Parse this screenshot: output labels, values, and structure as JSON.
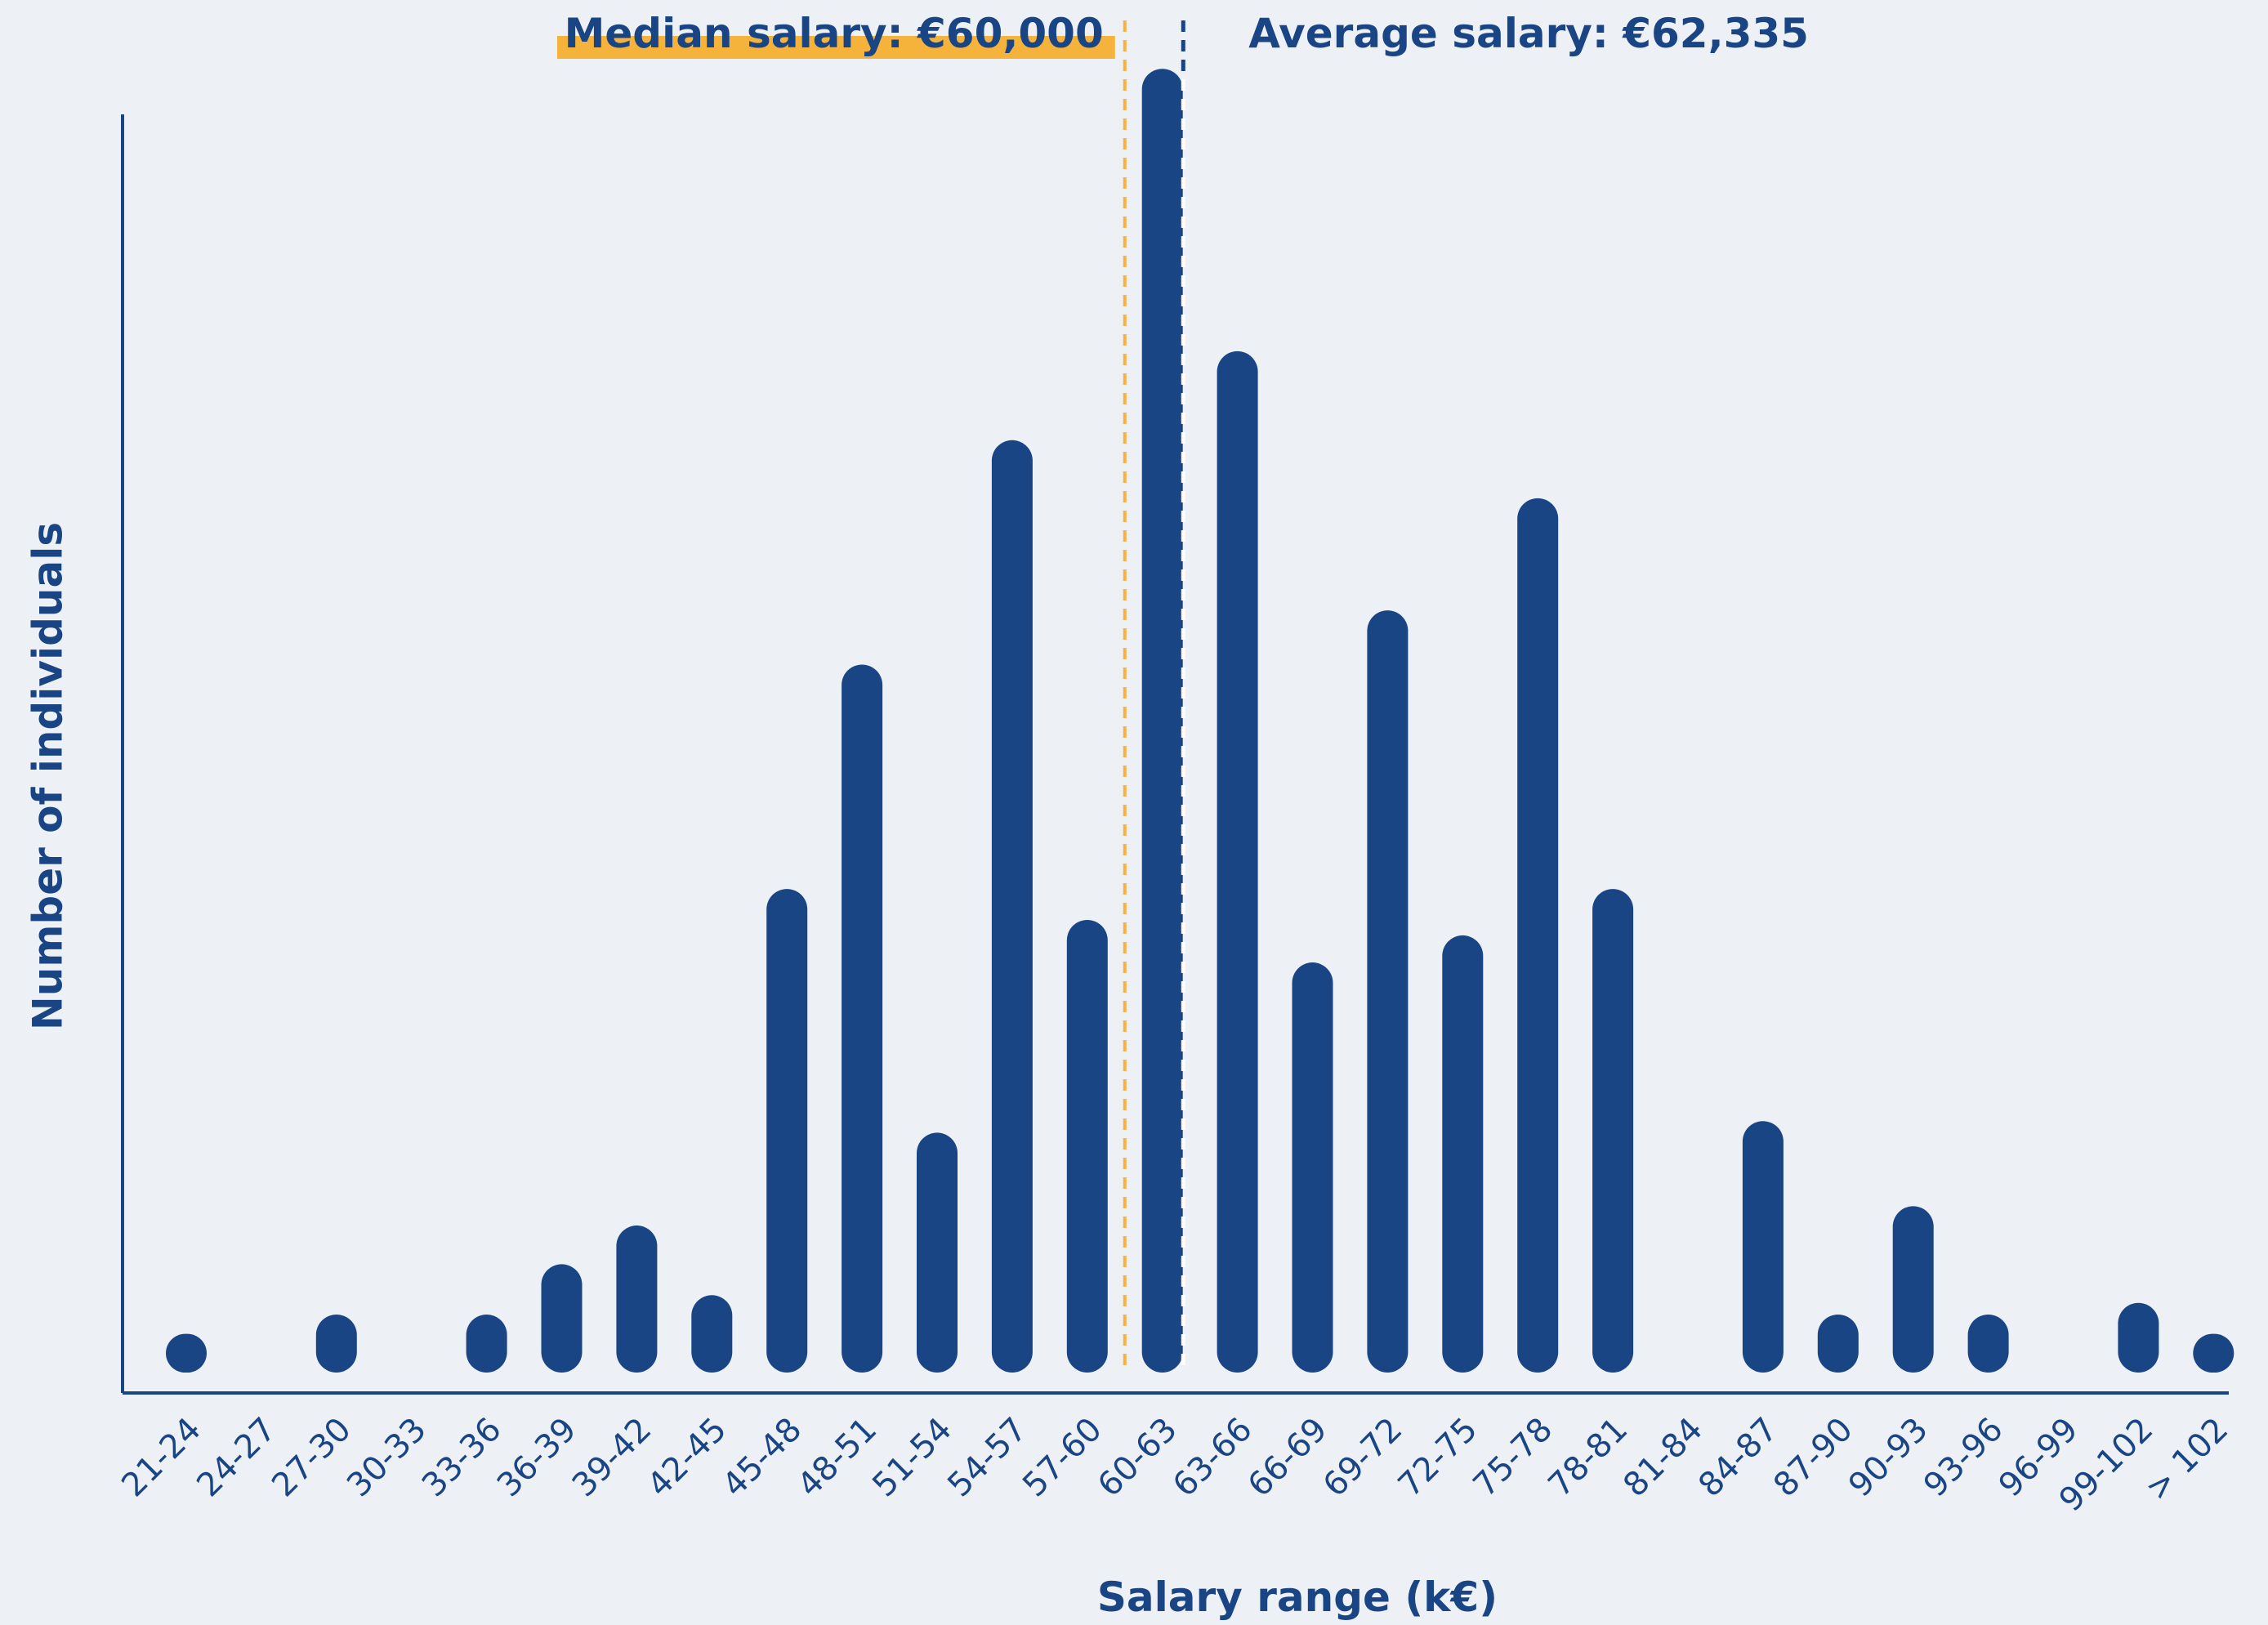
{
  "chart_data": {
    "type": "bar",
    "title": "",
    "xlabel": "Salary range (k€)",
    "ylabel": "Number of individuals",
    "categories": [
      "21-24",
      "24-27",
      "27-30",
      "30-33",
      "33-36",
      "36-39",
      "39-42",
      "42-45",
      "45-48",
      "48-51",
      "51-54",
      "54-57",
      "57-60",
      "60-63",
      "63-66",
      "66-69",
      "69-72",
      "72-75",
      "75-78",
      "78-81",
      "81-84",
      "84-87",
      "87-90",
      "90-93",
      "93-96",
      "96-99",
      "99-102",
      "> 102"
    ],
    "values": [
      1,
      0,
      1.5,
      0,
      1.5,
      2.8,
      3.8,
      2,
      12.5,
      18.3,
      6.2,
      24.1,
      11.7,
      33.7,
      26.4,
      10.6,
      19.7,
      11.3,
      22.6,
      12.5,
      0,
      6.5,
      1.5,
      4.3,
      1.5,
      0,
      1.8,
      1
    ],
    "ylim": [
      0,
      34
    ],
    "grid": false,
    "bar_color": "#1a4585",
    "annotations": {
      "median": {
        "label": "Median salary: €60,000",
        "value_k": 60,
        "color": "#f6b33c"
      },
      "average": {
        "label": "Average salary: €62,335",
        "value_k": 62.335,
        "color": "#1a4585"
      }
    },
    "axis_color": "#1a4585",
    "background": "#edf0f5"
  }
}
